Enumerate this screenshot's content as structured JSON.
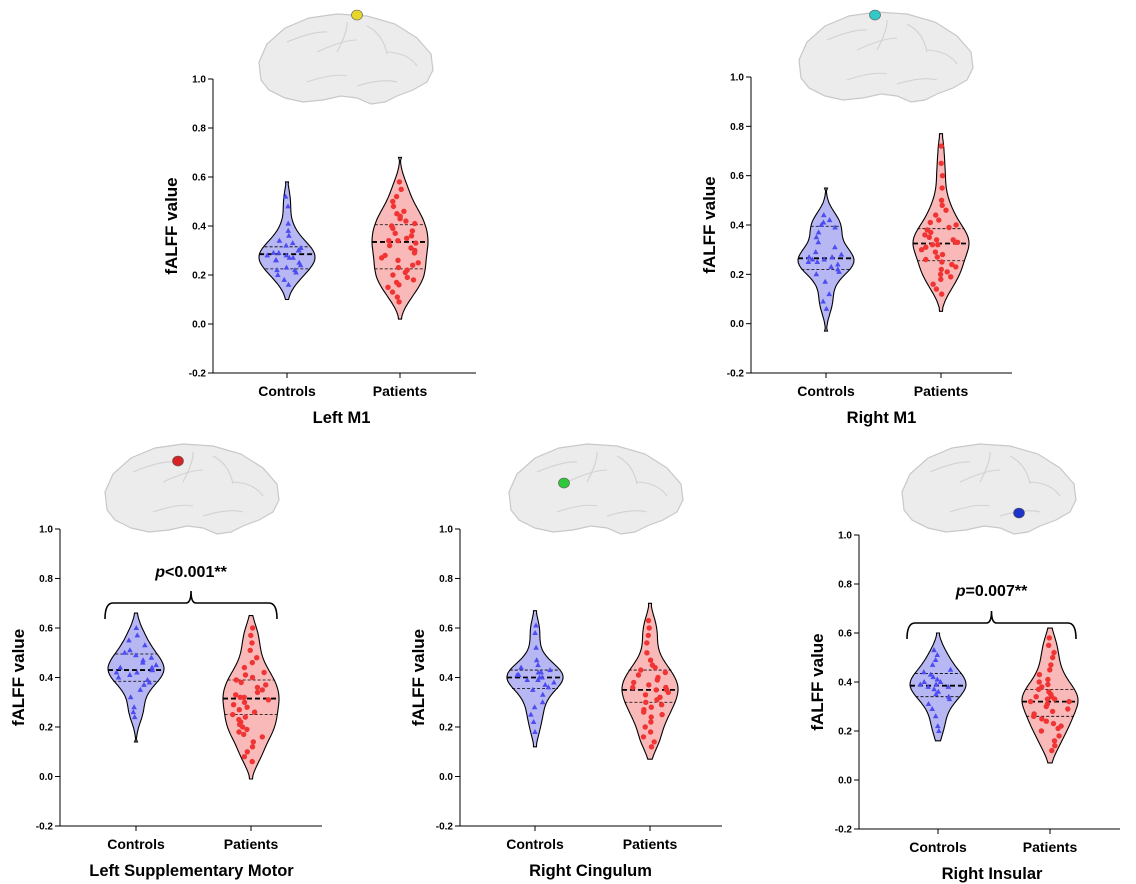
{
  "colors": {
    "controls_fill": "#b7b7f3",
    "controls_point": "#4c4cf0",
    "patients_fill": "#f9b9b9",
    "patients_point": "#f03434",
    "brain": "#ececec"
  },
  "chart_data": [
    {
      "type": "violin",
      "title": "Left M1",
      "ylabel": "fALFF value",
      "ylim": [
        -0.2,
        1.0
      ],
      "yticks": [
        "-0.2",
        "0.0",
        "0.2",
        "0.4",
        "0.6",
        "0.8",
        "1.0"
      ],
      "categories": [
        "Controls",
        "Patients"
      ],
      "roi_dot_color": "#e6d62a",
      "series": [
        {
          "name": "Controls",
          "median": 0.285,
          "q1": 0.225,
          "q3": 0.315,
          "min": 0.1,
          "max": 0.58,
          "values": [
            0.52,
            0.48,
            0.41,
            0.38,
            0.36,
            0.34,
            0.33,
            0.32,
            0.31,
            0.3,
            0.3,
            0.29,
            0.29,
            0.28,
            0.28,
            0.27,
            0.27,
            0.26,
            0.26,
            0.25,
            0.24,
            0.23,
            0.22,
            0.22,
            0.21,
            0.2,
            0.18,
            0.16
          ]
        },
        {
          "name": "Patients",
          "median": 0.335,
          "q1": 0.225,
          "q3": 0.405,
          "min": 0.02,
          "max": 0.68,
          "values": [
            0.58,
            0.55,
            0.52,
            0.5,
            0.48,
            0.46,
            0.45,
            0.44,
            0.43,
            0.42,
            0.41,
            0.4,
            0.39,
            0.38,
            0.37,
            0.36,
            0.35,
            0.34,
            0.34,
            0.33,
            0.32,
            0.31,
            0.3,
            0.29,
            0.28,
            0.27,
            0.26,
            0.25,
            0.24,
            0.23,
            0.22,
            0.21,
            0.2,
            0.19,
            0.18,
            0.17,
            0.16,
            0.15,
            0.13,
            0.11,
            0.09
          ]
        }
      ]
    },
    {
      "type": "violin",
      "title": "Right M1",
      "ylabel": "fALFF value",
      "ylim": [
        -0.2,
        1.0
      ],
      "yticks": [
        "-0.2",
        "0.0",
        "0.2",
        "0.4",
        "0.6",
        "0.8",
        "1.0"
      ],
      "categories": [
        "Controls",
        "Patients"
      ],
      "roi_dot_color": "#33c9c9",
      "series": [
        {
          "name": "Controls",
          "median": 0.265,
          "q1": 0.22,
          "q3": 0.395,
          "min": -0.03,
          "max": 0.55,
          "values": [
            0.44,
            0.42,
            0.41,
            0.4,
            0.39,
            0.37,
            0.35,
            0.33,
            0.31,
            0.29,
            0.28,
            0.27,
            0.27,
            0.26,
            0.26,
            0.25,
            0.25,
            0.24,
            0.23,
            0.22,
            0.21,
            0.2,
            0.17,
            0.12,
            0.09,
            0.06
          ]
        },
        {
          "name": "Patients",
          "median": 0.325,
          "q1": 0.255,
          "q3": 0.385,
          "min": 0.05,
          "max": 0.77,
          "values": [
            0.72,
            0.65,
            0.6,
            0.55,
            0.5,
            0.48,
            0.46,
            0.44,
            0.42,
            0.41,
            0.4,
            0.39,
            0.38,
            0.37,
            0.36,
            0.35,
            0.34,
            0.34,
            0.33,
            0.33,
            0.32,
            0.32,
            0.31,
            0.3,
            0.29,
            0.28,
            0.27,
            0.26,
            0.25,
            0.24,
            0.23,
            0.22,
            0.21,
            0.2,
            0.19,
            0.18,
            0.16,
            0.14,
            0.12
          ]
        }
      ]
    },
    {
      "type": "violin",
      "title": "Left Supplementary Motor",
      "ylabel": "fALFF value",
      "ylim": [
        -0.2,
        1.0
      ],
      "yticks": [
        "-0.2",
        "0.0",
        "0.2",
        "0.4",
        "0.6",
        "0.8",
        "1.0"
      ],
      "categories": [
        "Controls",
        "Patients"
      ],
      "roi_dot_color": "#d62424",
      "significance": {
        "prefix": "p",
        "text": "<0.001**"
      },
      "series": [
        {
          "name": "Controls",
          "median": 0.43,
          "q1": 0.385,
          "q3": 0.495,
          "min": 0.14,
          "max": 0.66,
          "values": [
            0.6,
            0.57,
            0.55,
            0.53,
            0.51,
            0.5,
            0.49,
            0.48,
            0.47,
            0.46,
            0.45,
            0.44,
            0.44,
            0.43,
            0.43,
            0.42,
            0.42,
            0.41,
            0.4,
            0.39,
            0.38,
            0.37,
            0.35,
            0.32,
            0.28,
            0.26,
            0.24
          ]
        },
        {
          "name": "Patients",
          "median": 0.315,
          "q1": 0.25,
          "q3": 0.39,
          "min": -0.01,
          "max": 0.65,
          "values": [
            0.6,
            0.57,
            0.54,
            0.51,
            0.48,
            0.46,
            0.44,
            0.42,
            0.41,
            0.4,
            0.39,
            0.38,
            0.37,
            0.36,
            0.35,
            0.34,
            0.33,
            0.32,
            0.32,
            0.31,
            0.3,
            0.29,
            0.28,
            0.27,
            0.26,
            0.25,
            0.24,
            0.23,
            0.22,
            0.21,
            0.2,
            0.19,
            0.18,
            0.17,
            0.16,
            0.14,
            0.12,
            0.1,
            0.08,
            0.06
          ]
        }
      ]
    },
    {
      "type": "violin",
      "title": "Right Cingulum",
      "ylabel": "fALFF value",
      "ylim": [
        -0.2,
        1.0
      ],
      "yticks": [
        "-0.2",
        "0.0",
        "0.2",
        "0.4",
        "0.6",
        "0.8",
        "1.0"
      ],
      "categories": [
        "Controls",
        "Patients"
      ],
      "roi_dot_color": "#2ec93a",
      "series": [
        {
          "name": "Controls",
          "median": 0.4,
          "q1": 0.355,
          "q3": 0.43,
          "min": 0.12,
          "max": 0.67,
          "values": [
            0.61,
            0.58,
            0.52,
            0.47,
            0.45,
            0.44,
            0.43,
            0.42,
            0.42,
            0.41,
            0.41,
            0.4,
            0.4,
            0.39,
            0.39,
            0.38,
            0.37,
            0.36,
            0.35,
            0.33,
            0.3,
            0.28,
            0.25,
            0.22,
            0.18
          ]
        },
        {
          "name": "Patients",
          "median": 0.35,
          "q1": 0.3,
          "q3": 0.43,
          "min": 0.07,
          "max": 0.7,
          "values": [
            0.63,
            0.6,
            0.57,
            0.54,
            0.5,
            0.47,
            0.45,
            0.44,
            0.43,
            0.42,
            0.41,
            0.4,
            0.39,
            0.38,
            0.37,
            0.36,
            0.36,
            0.35,
            0.35,
            0.34,
            0.33,
            0.32,
            0.31,
            0.3,
            0.29,
            0.28,
            0.27,
            0.26,
            0.25,
            0.24,
            0.22,
            0.2,
            0.18,
            0.16,
            0.14,
            0.12
          ]
        }
      ]
    },
    {
      "type": "violin",
      "title": "Right Insular",
      "ylabel": "fALFF value",
      "ylim": [
        -0.2,
        1.0
      ],
      "yticks": [
        "-0.2",
        "0.0",
        "0.2",
        "0.4",
        "0.6",
        "0.8",
        "1.0"
      ],
      "categories": [
        "Controls",
        "Patients"
      ],
      "roi_dot_color": "#1f33c9",
      "significance": {
        "prefix": "p",
        "text": "=0.007**"
      },
      "series": [
        {
          "name": "Controls",
          "median": 0.385,
          "q1": 0.34,
          "q3": 0.435,
          "min": 0.16,
          "max": 0.6,
          "values": [
            0.53,
            0.51,
            0.49,
            0.47,
            0.45,
            0.44,
            0.43,
            0.42,
            0.41,
            0.4,
            0.4,
            0.39,
            0.39,
            0.38,
            0.38,
            0.37,
            0.36,
            0.35,
            0.34,
            0.33,
            0.31,
            0.29,
            0.26,
            0.22,
            0.2
          ]
        },
        {
          "name": "Patients",
          "median": 0.32,
          "q1": 0.26,
          "q3": 0.37,
          "min": 0.07,
          "max": 0.62,
          "values": [
            0.58,
            0.55,
            0.52,
            0.5,
            0.47,
            0.45,
            0.43,
            0.41,
            0.4,
            0.39,
            0.38,
            0.37,
            0.36,
            0.35,
            0.34,
            0.34,
            0.33,
            0.33,
            0.32,
            0.32,
            0.31,
            0.3,
            0.29,
            0.28,
            0.27,
            0.26,
            0.25,
            0.24,
            0.23,
            0.22,
            0.21,
            0.2,
            0.18,
            0.16,
            0.14,
            0.12
          ]
        }
      ]
    }
  ]
}
